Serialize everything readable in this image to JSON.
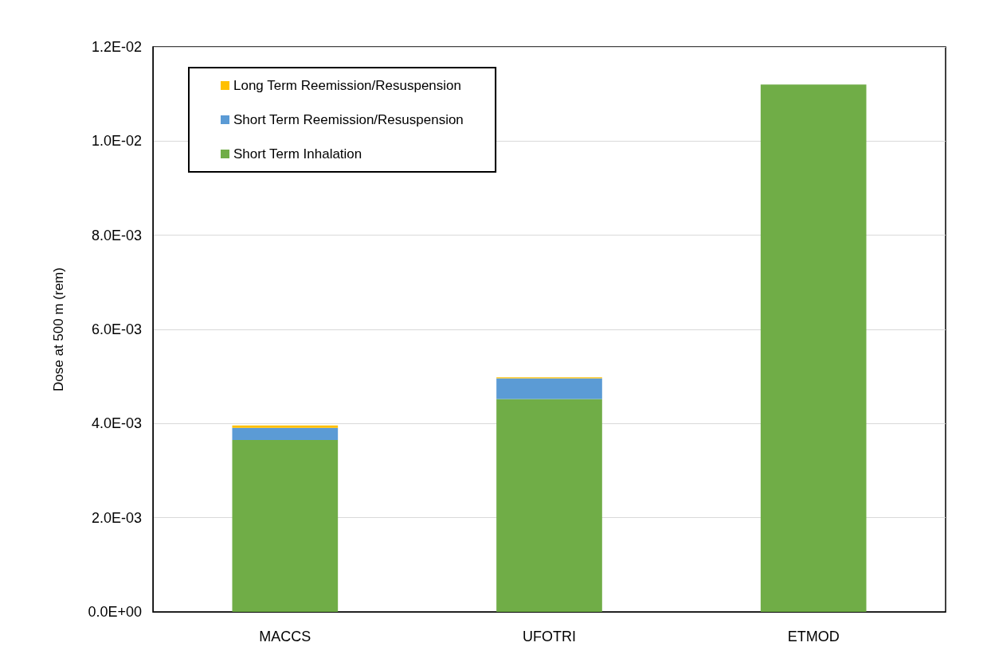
{
  "chart_data": {
    "type": "bar",
    "stacked": true,
    "ylabel": "Dose at 500 m (rem)",
    "categories": [
      "MACCS",
      "UFOTRI",
      "ETMOD"
    ],
    "series": [
      {
        "name": "Short Term Inhalation",
        "color": "#70ad47",
        "values": [
          0.00365,
          0.00452,
          0.0112
        ]
      },
      {
        "name": "Short Term Reemission/Resuspension",
        "color": "#5b9bd5",
        "values": [
          0.00026,
          0.00044,
          0
        ]
      },
      {
        "name": "Long Term Reemission/Resuspension",
        "color": "#ffc000",
        "values": [
          5e-05,
          2e-05,
          0
        ]
      }
    ],
    "ylim": [
      0,
      0.012
    ],
    "yticks": [
      {
        "value": 0,
        "label": "0.0E+00"
      },
      {
        "value": 0.002,
        "label": "2.0E-03"
      },
      {
        "value": 0.004,
        "label": "4.0E-03"
      },
      {
        "value": 0.006,
        "label": "6.0E-03"
      },
      {
        "value": 0.008,
        "label": "8.0E-03"
      },
      {
        "value": 0.01,
        "label": "1.0E-02"
      },
      {
        "value": 0.012,
        "label": "1.2E-02"
      }
    ],
    "grid": "y",
    "legend": "top left"
  }
}
